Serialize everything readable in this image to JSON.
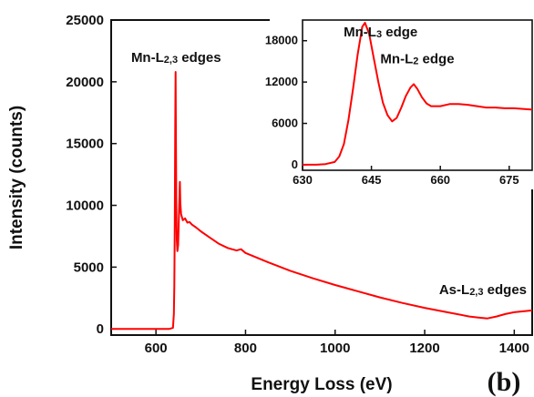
{
  "panel_label": "(b)",
  "chart_data": [
    {
      "type": "line",
      "xlabel": "Energy Loss (eV)",
      "ylabel": "Intensity (counts)",
      "xlim": [
        500,
        1440
      ],
      "ylim": [
        -500,
        25000
      ],
      "x_ticks": [
        600,
        800,
        1000,
        1200,
        1400
      ],
      "y_ticks": [
        0,
        5000,
        10000,
        15000,
        20000,
        25000
      ],
      "grid": false,
      "line_color": "#ff0000",
      "annotations": [
        {
          "base": "Mn-L",
          "sub": "2,3",
          "suffix": " edges",
          "x": 645,
          "y": 21600
        },
        {
          "base": "As-L",
          "sub": "2,3",
          "suffix": " edges",
          "x": 1330,
          "y": 2800
        }
      ],
      "series": [
        {
          "values": [
            [
              500,
              0
            ],
            [
              600,
              0
            ],
            [
              630,
              0
            ],
            [
              638,
              80
            ],
            [
              640,
              1200
            ],
            [
              641,
              3500
            ],
            [
              642,
              8500
            ],
            [
              643,
              16500
            ],
            [
              643.8,
              20800
            ],
            [
              644.6,
              15000
            ],
            [
              645.4,
              10000
            ],
            [
              646.5,
              7200
            ],
            [
              648,
              6300
            ],
            [
              649.5,
              6800
            ],
            [
              651,
              8800
            ],
            [
              652.5,
              10800
            ],
            [
              653.5,
              11900
            ],
            [
              654.5,
              10200
            ],
            [
              656,
              9300
            ],
            [
              660,
              8800
            ],
            [
              665,
              8950
            ],
            [
              670,
              8600
            ],
            [
              675,
              8650
            ],
            [
              680,
              8450
            ],
            [
              690,
              8200
            ],
            [
              700,
              7900
            ],
            [
              720,
              7400
            ],
            [
              740,
              6900
            ],
            [
              760,
              6550
            ],
            [
              780,
              6350
            ],
            [
              790,
              6450
            ],
            [
              800,
              6150
            ],
            [
              850,
              5400
            ],
            [
              900,
              4700
            ],
            [
              950,
              4100
            ],
            [
              1000,
              3550
            ],
            [
              1050,
              3050
            ],
            [
              1100,
              2550
            ],
            [
              1150,
              2100
            ],
            [
              1200,
              1700
            ],
            [
              1250,
              1350
            ],
            [
              1300,
              1000
            ],
            [
              1320,
              920
            ],
            [
              1340,
              850
            ],
            [
              1360,
              1000
            ],
            [
              1380,
              1200
            ],
            [
              1400,
              1350
            ],
            [
              1420,
              1420
            ],
            [
              1440,
              1500
            ]
          ]
        }
      ]
    },
    {
      "type": "line",
      "inset": true,
      "xlim": [
        630,
        680
      ],
      "ylim": [
        -800,
        21000
      ],
      "x_ticks": [
        630,
        645,
        660,
        675
      ],
      "y_ticks": [
        0,
        6000,
        12000,
        18000
      ],
      "grid": false,
      "line_color": "#ff0000",
      "annotations": [
        {
          "base": "Mn-L",
          "sub": "3",
          "suffix": " edge",
          "x": 647,
          "y": 18600
        },
        {
          "base": "Mn-L",
          "sub": "2",
          "suffix": " edge",
          "x": 655,
          "y": 14700
        }
      ],
      "series": [
        {
          "values": [
            [
              630,
              0
            ],
            [
              633,
              0
            ],
            [
              635,
              100
            ],
            [
              637,
              400
            ],
            [
              638,
              1200
            ],
            [
              639,
              3000
            ],
            [
              640,
              6500
            ],
            [
              641,
              11000
            ],
            [
              642,
              16000
            ],
            [
              643,
              20000
            ],
            [
              643.6,
              20600
            ],
            [
              644.5,
              19000
            ],
            [
              645.5,
              15500
            ],
            [
              646.5,
              12000
            ],
            [
              647.5,
              9000
            ],
            [
              648.5,
              7200
            ],
            [
              649.5,
              6300
            ],
            [
              650.5,
              6800
            ],
            [
              651.5,
              8300
            ],
            [
              652.5,
              10000
            ],
            [
              653.5,
              11200
            ],
            [
              654.2,
              11700
            ],
            [
              655,
              11000
            ],
            [
              656,
              9800
            ],
            [
              657,
              8900
            ],
            [
              658,
              8500
            ],
            [
              660,
              8500
            ],
            [
              662,
              8800
            ],
            [
              664,
              8800
            ],
            [
              666,
              8700
            ],
            [
              668,
              8500
            ],
            [
              670,
              8300
            ],
            [
              672,
              8300
            ],
            [
              674,
              8200
            ],
            [
              676,
              8200
            ],
            [
              678,
              8100
            ],
            [
              680,
              8000
            ]
          ]
        }
      ]
    }
  ]
}
